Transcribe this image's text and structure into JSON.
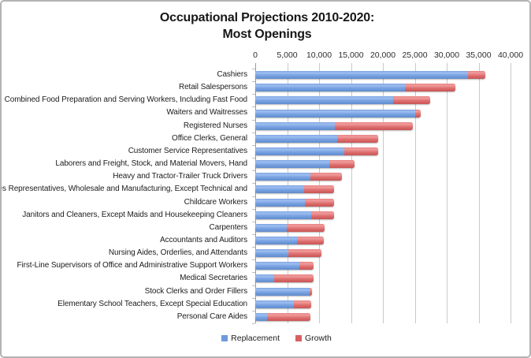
{
  "title": {
    "line1": "Occupational Projections 2010-2020:",
    "line2": "Most Openings"
  },
  "colors": {
    "replacement_bar": "#6f9ad9",
    "growth_bar": "#d66161",
    "gridline": "#c9c9c9",
    "zero_axis": "#9a9a9a",
    "frame_border": "#b3b3b3"
  },
  "chart_data": {
    "type": "bar",
    "orientation": "horizontal",
    "stacked": true,
    "title": "Occupational Projections 2010-2020: Most Openings",
    "grid": true,
    "legend_position": "bottom",
    "x_axis": {
      "position": "top",
      "min": 0,
      "max": 40000,
      "tick_interval": 5000,
      "tick_labels": [
        "0",
        "5,000",
        "10,000",
        "15,000",
        "20,000",
        "25,000",
        "30,000",
        "35,000",
        "40,000"
      ]
    },
    "categories": [
      "Cashiers",
      "Retail Salespersons",
      "Combined Food Preparation and Serving Workers, Including Fast Food",
      "Waiters and Waitresses",
      "Registered Nurses",
      "Office Clerks, General",
      "Customer Service Representatives",
      "Laborers and Freight, Stock, and Material Movers, Hand",
      "Heavy and Tractor-Trailer Truck Drivers",
      "Sales Representatives, Wholesale and Manufacturing, Except Technical and",
      "Childcare Workers",
      "Janitors and Cleaners, Except Maids and Housekeeping Cleaners",
      "Carpenters",
      "Accountants and Auditors",
      "Nursing Aides, Orderlies, and Attendants",
      "First-Line Supervisors of Office and Administrative Support Workers",
      "Medical Secretaries",
      "Stock Clerks and Order Fillers",
      "Elementary School Teachers, Except Special Education",
      "Personal Care Aides"
    ],
    "series": [
      {
        "name": "Replacement",
        "color": "#6f9ad9",
        "values": [
          33300,
          23500,
          21600,
          25000,
          12500,
          12800,
          13900,
          11600,
          8600,
          7600,
          7800,
          8800,
          4900,
          6500,
          5200,
          6900,
          3000,
          8500,
          6100,
          1800
        ]
      },
      {
        "name": "Growth",
        "color": "#d66161",
        "values": [
          2700,
          7900,
          5800,
          900,
          12200,
          6500,
          5300,
          3900,
          5000,
          4700,
          4600,
          3600,
          6000,
          4200,
          5200,
          2200,
          6100,
          400,
          2700,
          6900
        ]
      }
    ]
  }
}
